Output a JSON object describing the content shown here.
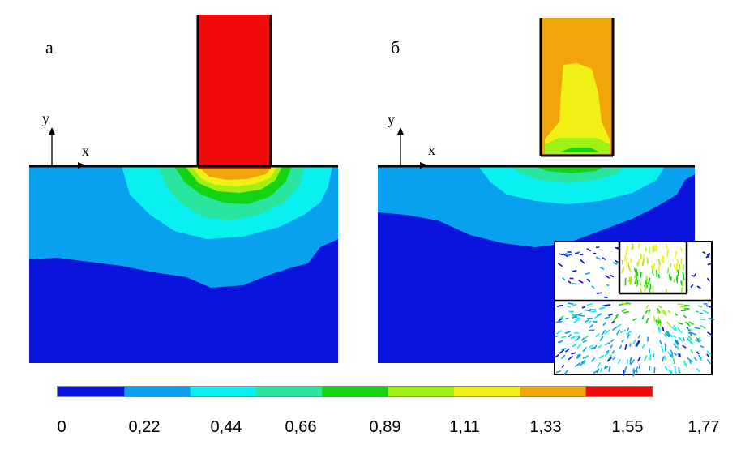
{
  "panels": [
    {
      "label": "а",
      "axis_y": "y",
      "axis_x": "x"
    },
    {
      "label": "б",
      "axis_y": "y",
      "axis_x": "x"
    }
  ],
  "colors": {
    "levels": [
      "#0a14dc",
      "#0aa0f0",
      "#0af0f0",
      "#28e6a0",
      "#14d214",
      "#a0f014",
      "#f0f014",
      "#f0a50a",
      "#f00a0a"
    ],
    "outline": "#000000"
  },
  "colorbar": {
    "ticks": [
      "0",
      "0,22",
      "0,44",
      "0,66",
      "0,89",
      "1,11",
      "1,33",
      "1,55",
      "1,77"
    ]
  }
}
